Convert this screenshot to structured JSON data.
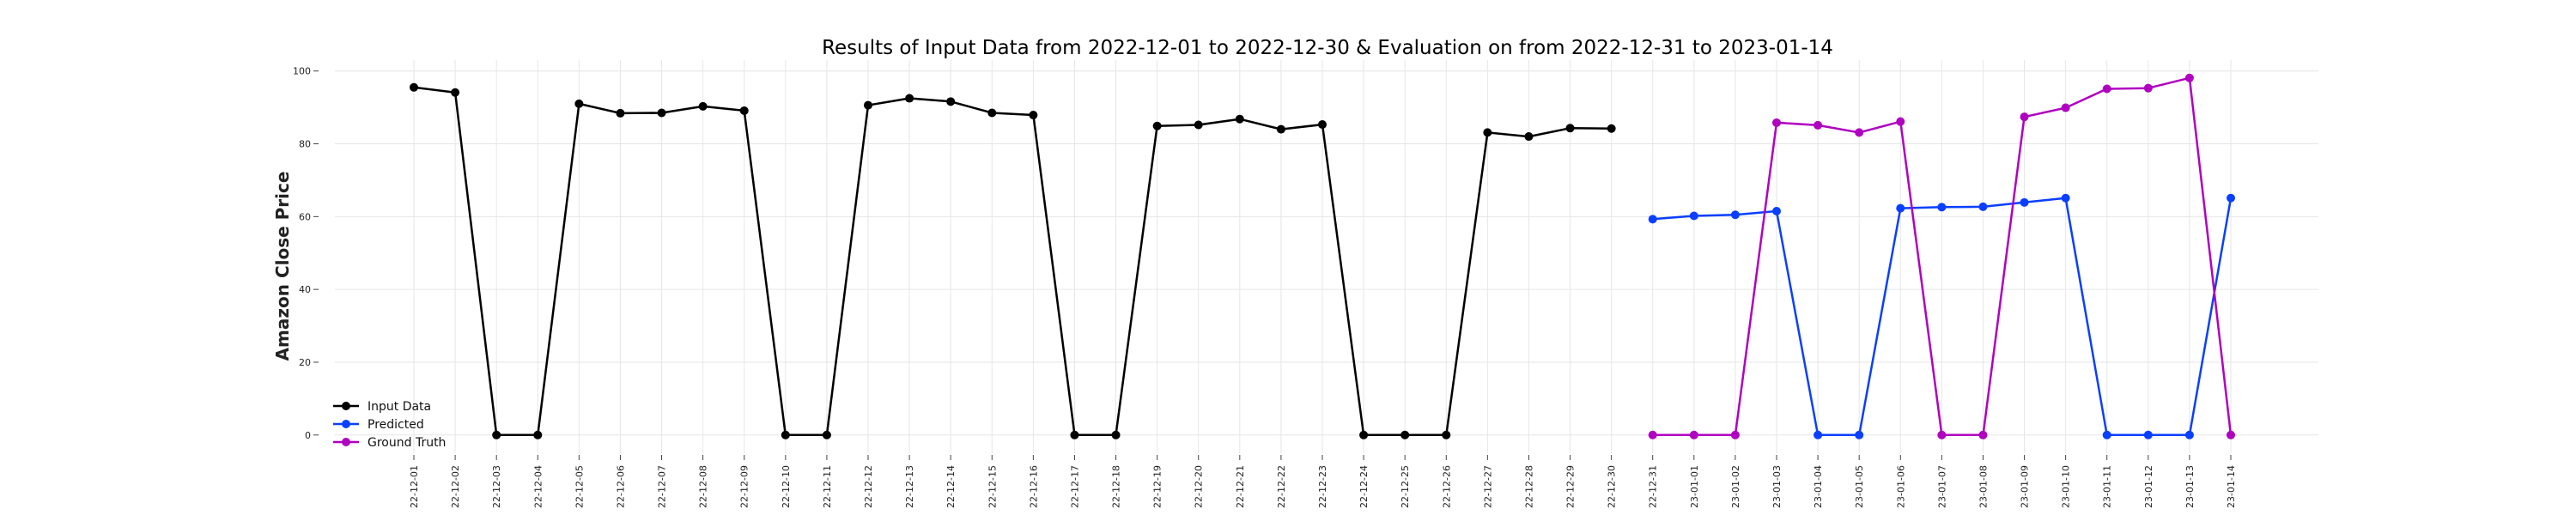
{
  "chart_data": {
    "type": "line",
    "title": "Results of Input Data from 2022-12-01 to 2022-12-30 & Evaluation on from 2022-12-31 to 2023-01-14",
    "xlabel": "",
    "ylabel": "Amazon Close Price",
    "ylim": [
      -5,
      103
    ],
    "yticks": [
      0,
      20,
      40,
      60,
      80,
      100
    ],
    "grid": true,
    "legend_position": "lower-left",
    "x": [
      "2022-12-01",
      "2022-12-02",
      "2022-12-03",
      "2022-12-04",
      "2022-12-05",
      "2022-12-06",
      "2022-12-07",
      "2022-12-08",
      "2022-12-09",
      "2022-12-10",
      "2022-12-11",
      "2022-12-12",
      "2022-12-13",
      "2022-12-14",
      "2022-12-15",
      "2022-12-16",
      "2022-12-17",
      "2022-12-18",
      "2022-12-19",
      "2022-12-20",
      "2022-12-21",
      "2022-12-22",
      "2022-12-23",
      "2022-12-24",
      "2022-12-25",
      "2022-12-26",
      "2022-12-27",
      "2022-12-28",
      "2022-12-29",
      "2022-12-30",
      "2022-12-31",
      "2023-01-01",
      "2023-01-02",
      "2023-01-03",
      "2023-01-04",
      "2023-01-05",
      "2023-01-06",
      "2023-01-07",
      "2023-01-08",
      "2023-01-09",
      "2023-01-10",
      "2023-01-11",
      "2023-01-12",
      "2023-01-13",
      "2023-01-14"
    ],
    "xtick_labels": [
      "22-12-01",
      "22-12-02",
      "22-12-03",
      "22-12-04",
      "22-12-05",
      "22-12-06",
      "22-12-07",
      "22-12-08",
      "22-12-09",
      "22-12-10",
      "22-12-11",
      "22-12-12",
      "22-12-13",
      "22-12-14",
      "22-12-15",
      "22-12-16",
      "22-12-17",
      "22-12-18",
      "22-12-19",
      "22-12-20",
      "22-12-21",
      "22-12-22",
      "22-12-23",
      "22-12-24",
      "22-12-25",
      "22-12-26",
      "22-12-27",
      "22-12-28",
      "22-12-29",
      "22-12-30",
      "22-12-31",
      "23-01-01",
      "23-01-02",
      "23-01-03",
      "23-01-04",
      "23-01-05",
      "23-01-06",
      "23-01-07",
      "23-01-08",
      "23-01-09",
      "23-01-10",
      "23-01-11",
      "23-01-12",
      "23-01-13",
      "23-01-14"
    ],
    "series": [
      {
        "name": "Input Data",
        "color": "#000000",
        "x": [
          "2022-12-01",
          "2022-12-02",
          "2022-12-03",
          "2022-12-04",
          "2022-12-05",
          "2022-12-06",
          "2022-12-07",
          "2022-12-08",
          "2022-12-09",
          "2022-12-10",
          "2022-12-11",
          "2022-12-12",
          "2022-12-13",
          "2022-12-14",
          "2022-12-15",
          "2022-12-16",
          "2022-12-17",
          "2022-12-18",
          "2022-12-19",
          "2022-12-20",
          "2022-12-21",
          "2022-12-22",
          "2022-12-23",
          "2022-12-24",
          "2022-12-25",
          "2022-12-26",
          "2022-12-27",
          "2022-12-28",
          "2022-12-29",
          "2022-12-30"
        ],
        "values": [
          95.5,
          94.1,
          0,
          0,
          91.0,
          88.4,
          88.5,
          90.3,
          89.1,
          0,
          0,
          90.6,
          92.5,
          91.6,
          88.5,
          87.9,
          0,
          0,
          84.9,
          85.2,
          86.8,
          84.0,
          85.3,
          0,
          0,
          0,
          83.1,
          82.0,
          84.3,
          84.2
        ]
      },
      {
        "name": "Predicted",
        "color": "#0a3fff",
        "x": [
          "2022-12-31",
          "2023-01-01",
          "2023-01-02",
          "2023-01-03",
          "2023-01-04",
          "2023-01-05",
          "2023-01-06",
          "2023-01-07",
          "2023-01-08",
          "2023-01-09",
          "2023-01-10",
          "2023-01-11",
          "2023-01-12",
          "2023-01-13",
          "2023-01-14"
        ],
        "values": [
          59.3,
          60.2,
          60.5,
          61.5,
          0,
          0,
          62.3,
          62.6,
          62.7,
          63.9,
          65.1,
          0,
          0,
          0,
          65.1
        ]
      },
      {
        "name": "Ground Truth",
        "color": "#b000c0",
        "x": [
          "2022-12-31",
          "2023-01-01",
          "2023-01-02",
          "2023-01-03",
          "2023-01-04",
          "2023-01-05",
          "2023-01-06",
          "2023-01-07",
          "2023-01-08",
          "2023-01-09",
          "2023-01-10",
          "2023-01-11",
          "2023-01-12",
          "2023-01-13",
          "2023-01-14"
        ],
        "values": [
          0,
          0,
          0,
          85.8,
          85.1,
          83.1,
          86.1,
          0,
          0,
          87.4,
          89.9,
          95.1,
          95.3,
          98.1,
          0
        ]
      }
    ]
  }
}
